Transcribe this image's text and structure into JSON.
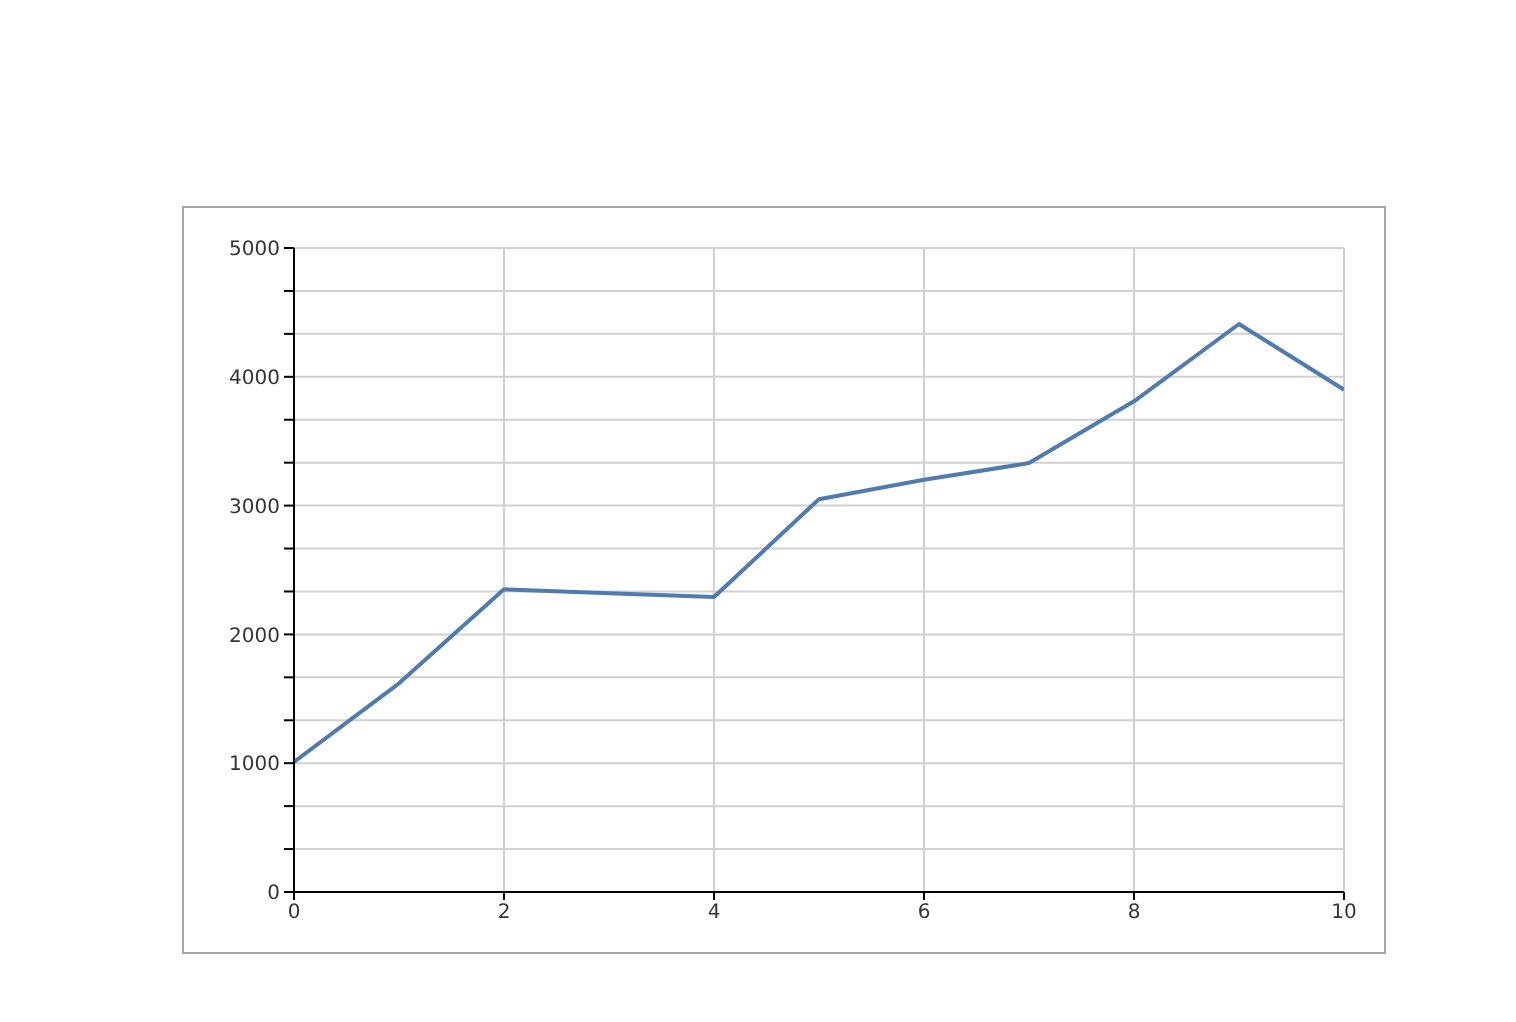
{
  "chart_data": {
    "type": "line",
    "x": [
      0,
      1,
      2,
      3,
      4,
      5,
      6,
      7,
      8,
      9,
      10
    ],
    "series": [
      {
        "color": "#4f7bb0",
        "values": [
          1010,
          1620,
          2350,
          2320,
          2290,
          3050,
          3200,
          3330,
          3810,
          4410,
          3900
        ]
      }
    ],
    "xlim": [
      0,
      10
    ],
    "xticks": [
      0,
      2,
      4,
      6,
      8,
      10
    ],
    "ylim": [
      0,
      5000
    ],
    "yticks": [
      0,
      {
        "value": 333.3,
        "label": null
      },
      {
        "value": 666.7,
        "label": null
      },
      1000,
      {
        "value": 1333.3,
        "label": null
      },
      {
        "value": 1666.7,
        "label": null
      },
      2000,
      {
        "value": 2333.3,
        "label": null
      },
      {
        "value": 2666.7,
        "label": null
      },
      3000,
      {
        "value": 3333.3,
        "label": null
      },
      {
        "value": 3666.7,
        "label": null
      },
      4000,
      {
        "value": 4333.3,
        "label": null
      },
      {
        "value": 4666.7,
        "label": null
      },
      5000
    ],
    "grid": true,
    "marker": "none",
    "line_style": "solid"
  }
}
